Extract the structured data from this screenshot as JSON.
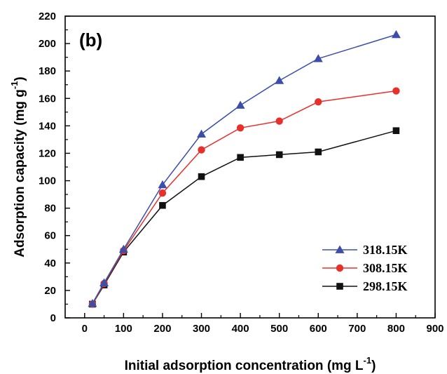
{
  "chart_data": {
    "type": "line",
    "panel_label": "(b)",
    "xlabel": "Initial adsorption concentration (mg L",
    "xlabel_sup": "-1",
    "xlabel_close": ")",
    "ylabel": "Adsorption capacity  (mg g",
    "ylabel_sup": "-1",
    "ylabel_close": ")",
    "xlim": [
      -50,
      900
    ],
    "ylim": [
      0,
      220
    ],
    "xticks": [
      0,
      100,
      200,
      300,
      400,
      500,
      600,
      700,
      800,
      900
    ],
    "yticks": [
      0,
      20,
      40,
      60,
      80,
      100,
      120,
      140,
      160,
      180,
      200,
      220
    ],
    "x": [
      20,
      50,
      100,
      200,
      300,
      400,
      500,
      600,
      800
    ],
    "legend_position": "bottom-right",
    "series": [
      {
        "name": "318.15K",
        "color": "#3c4ea8",
        "marker": "triangle",
        "values": [
          10.5,
          25.5,
          50,
          97,
          134,
          155,
          173,
          189,
          206.5
        ]
      },
      {
        "name": "308.15K",
        "color": "#e8302b",
        "marker": "circle",
        "values": [
          10,
          25,
          49,
          91,
          122.5,
          138.5,
          143.5,
          157.5,
          165.5
        ]
      },
      {
        "name": "298.15K",
        "color": "#111111",
        "marker": "square",
        "values": [
          10,
          24,
          48,
          82,
          103,
          117,
          119,
          121,
          136.5
        ]
      }
    ]
  }
}
